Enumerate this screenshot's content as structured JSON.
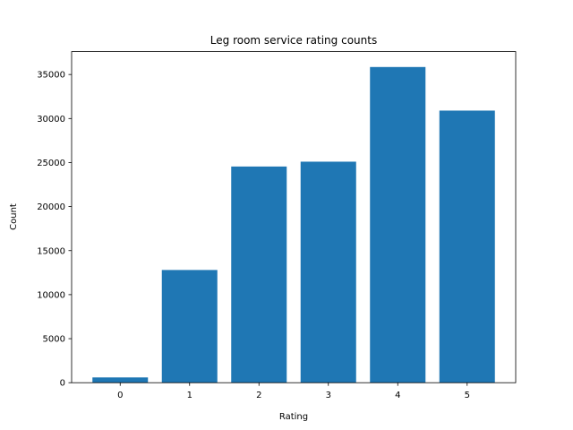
{
  "chart_data": {
    "type": "bar",
    "title": "Leg room service rating counts",
    "xlabel": "Rating",
    "ylabel": "Count",
    "categories": [
      "0",
      "1",
      "2",
      "3",
      "4",
      "5"
    ],
    "values": [
      600,
      12800,
      24550,
      25100,
      35850,
      30900
    ],
    "ylim": [
      0,
      37600
    ],
    "yticks": [
      0,
      5000,
      10000,
      15000,
      20000,
      25000,
      30000,
      35000
    ],
    "ytick_labels": [
      "0",
      "5000",
      "10000",
      "15000",
      "20000",
      "25000",
      "30000",
      "35000"
    ],
    "bar_color": "#1f77b4",
    "grid": false,
    "legend": "none"
  }
}
